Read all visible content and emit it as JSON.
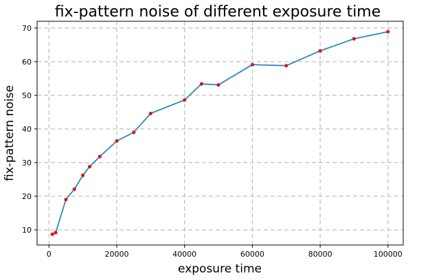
{
  "chart_data": {
    "type": "line",
    "title": "fix-pattern noise of different exposure time",
    "xlabel": "exposure time",
    "ylabel": "fix-pattern noise",
    "xlim": [
      -3500,
      104500
    ],
    "ylim": [
      5.5,
      72
    ],
    "xticks": [
      0,
      20000,
      40000,
      60000,
      80000,
      100000
    ],
    "yticks": [
      10,
      20,
      30,
      40,
      50,
      60,
      70
    ],
    "grid": true,
    "line_color": "#2e86c1",
    "marker_color": "#d7191c",
    "series": [
      {
        "x": [
          1000,
          2000,
          5000,
          7500,
          10000,
          12000,
          15000,
          20000,
          25000,
          30000,
          40000,
          45000,
          50000,
          60000,
          70000,
          80000,
          90000,
          100000
        ],
        "y": [
          8.7,
          9.2,
          19.0,
          22.1,
          26.2,
          28.8,
          31.8,
          36.4,
          39.0,
          44.6,
          48.6,
          53.4,
          53.1,
          59.1,
          58.8,
          63.2,
          66.8,
          68.9
        ]
      }
    ]
  }
}
